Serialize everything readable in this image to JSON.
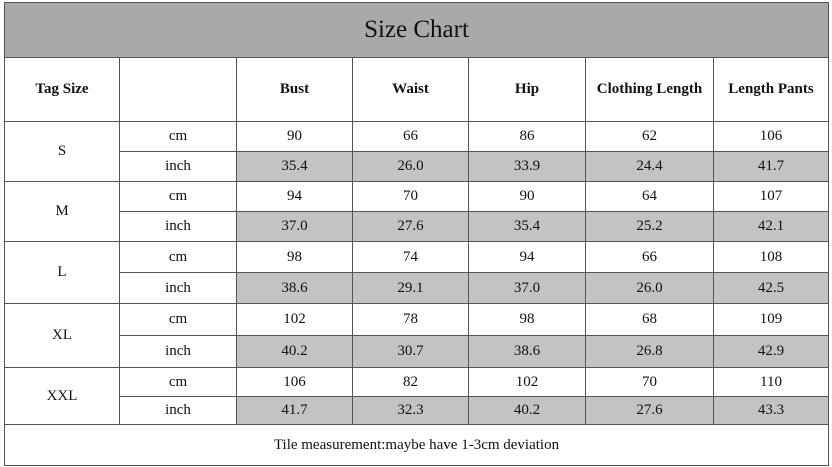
{
  "title": "Size Chart",
  "header": {
    "tag_size": "Tag Size",
    "columns": [
      "Bust",
      "Waist",
      "Hip",
      "Clothing Length",
      "Length Pants"
    ]
  },
  "sizes": [
    {
      "size": "S",
      "rows": [
        {
          "unit": "cm",
          "values": [
            "90",
            "66",
            "86",
            "62",
            "106"
          ]
        },
        {
          "unit": "inch",
          "values": [
            "35.4",
            "26.0",
            "33.9",
            "24.4",
            "41.7"
          ]
        }
      ]
    },
    {
      "size": "M",
      "rows": [
        {
          "unit": "cm",
          "values": [
            "94",
            "70",
            "90",
            "64",
            "107"
          ]
        },
        {
          "unit": "inch",
          "values": [
            "37.0",
            "27.6",
            "35.4",
            "25.2",
            "42.1"
          ]
        }
      ]
    },
    {
      "size": "L",
      "rows": [
        {
          "unit": "cm",
          "values": [
            "98",
            "74",
            "94",
            "66",
            "108"
          ]
        },
        {
          "unit": "inch",
          "values": [
            "38.6",
            "29.1",
            "37.0",
            "26.0",
            "42.5"
          ]
        }
      ]
    },
    {
      "size": "XL",
      "rows": [
        {
          "unit": "cm",
          "values": [
            "102",
            "78",
            "98",
            "68",
            "109"
          ]
        },
        {
          "unit": "inch",
          "values": [
            "40.2",
            "30.7",
            "38.6",
            "26.8",
            "42.9"
          ]
        }
      ]
    },
    {
      "size": "XXL",
      "rows": [
        {
          "unit": "cm",
          "values": [
            "106",
            "82",
            "102",
            "70",
            "110"
          ]
        },
        {
          "unit": "inch",
          "values": [
            "41.7",
            "32.3",
            "40.2",
            "27.6",
            "43.3"
          ]
        }
      ]
    }
  ],
  "note": "Tile measurement:maybe have 1-3cm deviation"
}
